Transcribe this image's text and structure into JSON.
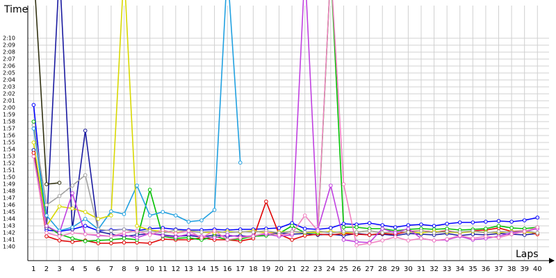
{
  "chart_data": {
    "type": "line",
    "y_label": "Time",
    "x_label": "Laps",
    "x": [
      1,
      2,
      3,
      4,
      5,
      6,
      7,
      8,
      9,
      10,
      11,
      12,
      13,
      14,
      15,
      16,
      17,
      18,
      19,
      20,
      21,
      22,
      23,
      24,
      25,
      26,
      27,
      28,
      29,
      30,
      31,
      32,
      33,
      34,
      35,
      36,
      37,
      38,
      39,
      40
    ],
    "xlim": [
      0.55,
      40.9
    ],
    "xticks": [
      1,
      2,
      3,
      4,
      5,
      6,
      7,
      8,
      9,
      10,
      11,
      12,
      13,
      14,
      15,
      16,
      17,
      18,
      19,
      20,
      21,
      22,
      23,
      24,
      25,
      26,
      27,
      28,
      29,
      30,
      31,
      32,
      33,
      34,
      35,
      36,
      37,
      38,
      39,
      40
    ],
    "ylim": [
      98,
      135.5
    ],
    "yticks": [
      {
        "value": 100,
        "label": "1:40"
      },
      {
        "value": 101,
        "label": "1:41"
      },
      {
        "value": 102,
        "label": "1:42"
      },
      {
        "value": 103,
        "label": "1:43"
      },
      {
        "value": 104,
        "label": "1:44"
      },
      {
        "value": 105,
        "label": "1:45"
      },
      {
        "value": 106,
        "label": "1:46"
      },
      {
        "value": 107,
        "label": "1:47"
      },
      {
        "value": 108,
        "label": "1:48"
      },
      {
        "value": 109,
        "label": "1:49"
      },
      {
        "value": 110,
        "label": "1:50"
      },
      {
        "value": 111,
        "label": "1:51"
      },
      {
        "value": 112,
        "label": "1:52"
      },
      {
        "value": 113,
        "label": "1:53"
      },
      {
        "value": 114,
        "label": "1:54"
      },
      {
        "value": 115,
        "label": "1:55"
      },
      {
        "value": 116,
        "label": "1:56"
      },
      {
        "value": 117,
        "label": "1:57"
      },
      {
        "value": 118,
        "label": "1:58"
      },
      {
        "value": 119,
        "label": "1:59"
      },
      {
        "value": 120,
        "label": "2:00"
      },
      {
        "value": 121,
        "label": "2:01"
      },
      {
        "value": 122,
        "label": "2:02"
      },
      {
        "value": 123,
        "label": "2:03"
      },
      {
        "value": 124,
        "label": "2:04"
      },
      {
        "value": 125,
        "label": "2:05"
      },
      {
        "value": 126,
        "label": "2:06"
      },
      {
        "value": 127,
        "label": "2:07"
      },
      {
        "value": 128,
        "label": "2:08"
      },
      {
        "value": 129,
        "label": "2:09"
      },
      {
        "value": 130,
        "label": "2:10"
      }
    ],
    "grid": true,
    "series": [
      {
        "color": "#0000ff",
        "values": [
          120.4,
          102.4,
          102.2,
          102.5,
          103.0,
          102.3,
          102.4,
          102.5,
          102.3,
          102.6,
          102.7,
          102.5,
          102.4,
          102.4,
          102.5,
          102.4,
          102.5,
          102.5,
          102.6,
          102.7,
          103.4,
          102.6,
          102.5,
          102.7,
          103.3,
          103.2,
          103.4,
          103.1,
          102.8,
          103.1,
          103.2,
          103.0,
          103.3,
          103.5,
          103.5,
          103.6,
          103.7,
          103.6,
          103.8,
          104.2
        ]
      },
      {
        "color": "#1a1aa0",
        "values": [
          113.9,
          102.7,
          140,
          102.5,
          116.7,
          102.2,
          101.8,
          101.5,
          101.7,
          101.9,
          101.7,
          101.5,
          101.6,
          101.4,
          101.7,
          101.5,
          101.6,
          101.4,
          101.9,
          102.0,
          101.8,
          101.9,
          101.7,
          101.8,
          101.6,
          101.9,
          101.7,
          101.8,
          101.6,
          101.9,
          101.8,
          101.7,
          101.9,
          101.6,
          101.8,
          101.7,
          101.9,
          101.8,
          101.7,
          101.9
        ]
      },
      {
        "color": "#e00000",
        "values": [
          113.5,
          101.5,
          100.9,
          100.7,
          100.9,
          100.5,
          100.5,
          100.6,
          100.6,
          100.5,
          101.1,
          101.0,
          101.0,
          101.3,
          101.0,
          101.0,
          100.8,
          101.2,
          106.5,
          101.8,
          101.0,
          101.6,
          101.8,
          101.7,
          101.9,
          101.8,
          101.7,
          101.9,
          101.8,
          102.2,
          102.3,
          102.1,
          102.3,
          102.0,
          102.3,
          102.4,
          102.7,
          102.2,
          102.3,
          101.8
        ]
      },
      {
        "color": "#00c000",
        "values": [
          118.0,
          103.0,
          101.8,
          101.2,
          100.8,
          100.9,
          101.0,
          101.2,
          101.0,
          108.2,
          101.5,
          101.2,
          101.3,
          101.0,
          101.5,
          101.0,
          101.1,
          101.5,
          101.6,
          101.9,
          103.0,
          102.0,
          102.0,
          140,
          102.8,
          102.8,
          102.6,
          102.6,
          102.3,
          102.5,
          102.6,
          102.5,
          102.6,
          102.4,
          102.5,
          102.6,
          103.0,
          102.7,
          102.6,
          102.8
        ]
      },
      {
        "color": "#20a0e0",
        "values": [
          117.0,
          104.5,
          102.3,
          102.8,
          104.0,
          102.5,
          105.1,
          104.7,
          108.8,
          104.5,
          105.0,
          104.5,
          103.6,
          103.8,
          105.3,
          140,
          112.1,
          null,
          null,
          null,
          null,
          null,
          null,
          null,
          null,
          null,
          null,
          null,
          null,
          null,
          null,
          null,
          null,
          null,
          null,
          null,
          null,
          null,
          null,
          null
        ]
      },
      {
        "color": "#d8d800",
        "values": [
          115.0,
          103.0,
          105.8,
          105.5,
          105.0,
          104.0,
          104.5,
          140,
          103.0,
          102.4,
          102.2,
          102.0,
          102.3,
          102.1,
          102.0,
          102.2,
          102.1,
          102.3,
          102.0,
          102.1,
          102.2,
          102.0,
          102.1,
          102.2,
          102.0,
          102.1,
          102.3,
          102.0,
          102.2,
          102.1,
          102.0,
          102.2,
          102.1,
          102.0,
          102.2,
          102.1,
          102.0,
          102.2,
          102.1,
          102.0
        ]
      },
      {
        "color": "#a0a0a0",
        "values": [
          117.5,
          106.0,
          107.3,
          108.8,
          110.3,
          102.5,
          102.3,
          102.5,
          102.1,
          102.3,
          102.0,
          102.4,
          102.2,
          102.1,
          102.3,
          102.0,
          102.2,
          102.1,
          102.3,
          102.0,
          102.2,
          102.1,
          102.3,
          102.0,
          102.2,
          102.1,
          102.3,
          102.0,
          102.2,
          102.1,
          102.3,
          102.0,
          102.2,
          102.1,
          102.3,
          102.0,
          102.2,
          102.1,
          102.3,
          102.0
        ]
      },
      {
        "color": "#303010",
        "values": [
          140,
          109.0,
          109.2,
          null,
          null,
          null,
          null,
          null,
          null,
          null,
          null,
          null,
          null,
          null,
          null,
          null,
          null,
          null,
          null,
          null,
          null,
          null,
          null,
          null,
          null,
          null,
          null,
          null,
          null,
          null,
          null,
          null,
          null,
          null,
          null,
          null,
          null,
          null,
          null,
          null
        ]
      },
      {
        "color": "#c040e0",
        "values": [
          113.0,
          103.0,
          102.0,
          107.7,
          101.8,
          101.6,
          101.5,
          101.7,
          101.3,
          101.9,
          101.6,
          101.4,
          101.8,
          101.5,
          101.3,
          101.7,
          101.4,
          101.6,
          101.8,
          101.5,
          101.7,
          140,
          102.5,
          108.8,
          101.0,
          100.7,
          100.6,
          102.6,
          102.0,
          102.6,
          101.2,
          100.9,
          101.0,
          101.5,
          101.0,
          101.2,
          101.5,
          102.0,
          102.2,
          102.6
        ]
      },
      {
        "color": "#f080c0",
        "values": [
          113.0,
          102.0,
          101.5,
          102.0,
          101.8,
          101.7,
          101.5,
          102.0,
          102.3,
          101.7,
          102.4,
          101.9,
          102.3,
          101.3,
          102.3,
          101.0,
          101.3,
          101.5,
          102.0,
          101.7,
          101.9,
          104.5,
          102.3,
          140,
          109.0,
          100.2,
          100.5,
          100.9,
          101.4,
          100.9,
          101.2,
          100.9,
          101.1,
          101.6,
          101.2,
          101.5,
          101.3,
          101.8,
          102.2,
          102.8
        ]
      }
    ]
  }
}
